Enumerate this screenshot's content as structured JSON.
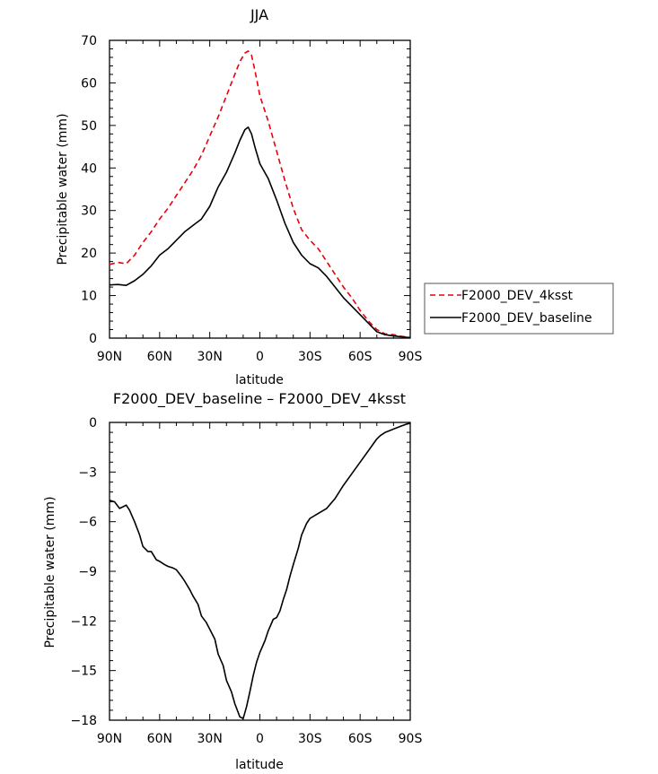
{
  "chart_data": [
    {
      "type": "line",
      "title": "JJA",
      "xlabel": "latitude",
      "ylabel": "Precipitable water (mm)",
      "xlim": [
        90,
        -90
      ],
      "ylim": [
        0,
        70
      ],
      "xticks": [
        90,
        60,
        30,
        0,
        -30,
        -60,
        -90
      ],
      "xtick_labels": [
        "90N",
        "60N",
        "30N",
        "0",
        "30S",
        "60S",
        "90S"
      ],
      "yticks": [
        0,
        10,
        20,
        30,
        40,
        50,
        60,
        70
      ],
      "ytick_labels": [
        "0",
        "10",
        "20",
        "30",
        "40",
        "50",
        "60",
        "70"
      ],
      "legend_position": "right",
      "series": [
        {
          "name": "F2000_DEV_4ksst",
          "color": "#e8000b",
          "dash": "dashed",
          "x": [
            90,
            85,
            80,
            75,
            70,
            65,
            60,
            55,
            50,
            45,
            40,
            35,
            30,
            25,
            20,
            15,
            12,
            9,
            7,
            5,
            3,
            0,
            -5,
            -10,
            -15,
            -20,
            -25,
            -30,
            -35,
            -40,
            -45,
            -50,
            -55,
            -60,
            -65,
            -70,
            -75,
            -80,
            -85,
            -90
          ],
          "y": [
            17.3,
            17.8,
            17.5,
            19.5,
            22.5,
            25.0,
            28.0,
            30.5,
            33.5,
            36.5,
            39.5,
            43.0,
            47.5,
            52.0,
            57.0,
            62.0,
            65.0,
            67.0,
            67.5,
            66.5,
            63.0,
            57.0,
            51.0,
            44.0,
            37.0,
            30.5,
            25.5,
            23.0,
            21.0,
            18.0,
            15.0,
            12.0,
            9.5,
            6.5,
            4.0,
            2.0,
            1.0,
            0.8,
            0.4,
            0.2
          ]
        },
        {
          "name": "F2000_DEV_baseline",
          "color": "#000000",
          "dash": "solid",
          "x": [
            90,
            85,
            80,
            75,
            70,
            65,
            60,
            55,
            50,
            45,
            40,
            35,
            30,
            25,
            20,
            15,
            12,
            9,
            7,
            5,
            3,
            0,
            -5,
            -10,
            -15,
            -20,
            -25,
            -30,
            -35,
            -40,
            -45,
            -50,
            -55,
            -60,
            -65,
            -70,
            -75,
            -80,
            -85,
            -90
          ],
          "y": [
            12.5,
            12.6,
            12.4,
            13.5,
            15.0,
            17.0,
            19.5,
            21.0,
            23.0,
            25.0,
            26.5,
            28.0,
            31.0,
            35.5,
            39.0,
            43.5,
            46.5,
            49.0,
            49.6,
            48.0,
            45.0,
            41.0,
            37.5,
            32.5,
            27.0,
            22.5,
            19.5,
            17.5,
            16.5,
            14.5,
            12.0,
            9.5,
            7.5,
            5.5,
            3.5,
            1.5,
            0.8,
            0.5,
            0.3,
            0.1
          ]
        }
      ]
    },
    {
      "type": "line",
      "title": "F2000_DEV_baseline – F2000_DEV_4ksst",
      "xlabel": "latitude",
      "ylabel": "Precipitable water (mm)",
      "xlim": [
        90,
        -90
      ],
      "ylim": [
        -18,
        0
      ],
      "xticks": [
        90,
        60,
        30,
        0,
        -30,
        -60,
        -90
      ],
      "xtick_labels": [
        "90N",
        "60N",
        "30N",
        "0",
        "30S",
        "60S",
        "90S"
      ],
      "yticks": [
        0,
        -3,
        -6,
        -9,
        -12,
        -15,
        -18
      ],
      "ytick_labels": [
        "0",
        "−3",
        "−6",
        "−9",
        "−12",
        "−15",
        "−18"
      ],
      "series": [
        {
          "color": "#000000",
          "dash": "solid",
          "x": [
            90,
            87,
            84,
            82,
            80,
            78,
            75,
            72,
            70,
            67,
            65,
            62,
            60,
            57,
            55,
            52,
            50,
            47,
            45,
            42,
            40,
            37,
            35,
            32,
            30,
            27,
            25,
            22,
            20,
            17,
            15,
            12,
            10,
            8,
            6,
            4,
            2,
            0,
            -3,
            -5,
            -8,
            -10,
            -12,
            -14,
            -16,
            -18,
            -20,
            -23,
            -25,
            -28,
            -30,
            -35,
            -40,
            -45,
            -50,
            -55,
            -60,
            -65,
            -70,
            -72,
            -75,
            -80,
            -85,
            -88,
            -90
          ],
          "y": [
            -4.7,
            -4.8,
            -5.2,
            -5.1,
            -5.0,
            -5.3,
            -6.0,
            -6.8,
            -7.5,
            -7.8,
            -7.8,
            -8.3,
            -8.4,
            -8.6,
            -8.7,
            -8.8,
            -8.9,
            -9.3,
            -9.6,
            -10.1,
            -10.5,
            -11.0,
            -11.7,
            -12.1,
            -12.5,
            -13.1,
            -14.0,
            -14.7,
            -15.6,
            -16.3,
            -17.0,
            -17.8,
            -17.9,
            -17.2,
            -16.3,
            -15.3,
            -14.5,
            -13.9,
            -13.2,
            -12.6,
            -11.9,
            -11.8,
            -11.4,
            -10.7,
            -10.1,
            -9.3,
            -8.6,
            -7.6,
            -6.8,
            -6.1,
            -5.8,
            -5.5,
            -5.2,
            -4.6,
            -3.8,
            -3.1,
            -2.4,
            -1.7,
            -1.0,
            -0.8,
            -0.6,
            -0.4,
            -0.2,
            -0.1,
            -0.05
          ]
        }
      ]
    }
  ]
}
